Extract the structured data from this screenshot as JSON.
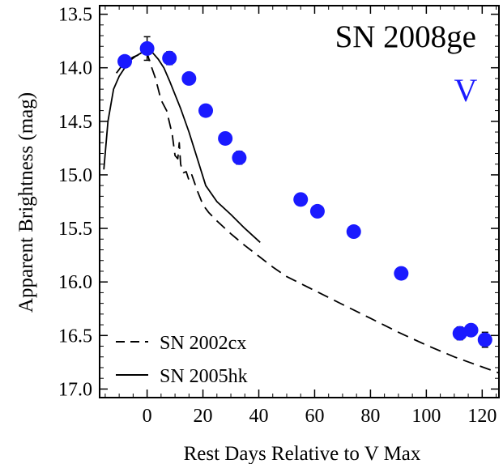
{
  "chart_data": {
    "type": "scatter",
    "title": "SN 2008ge",
    "band_label": "V",
    "xlabel": "Rest Days Relative to V Max",
    "ylabel": "Apparent Brightness (mag)",
    "xlim": [
      -17,
      126
    ],
    "ylim": [
      13.42,
      17.08
    ],
    "y_inverted": true,
    "xticks": [
      0,
      20,
      40,
      60,
      80,
      100,
      120
    ],
    "yticks": [
      13.5,
      14.0,
      14.5,
      15.0,
      15.5,
      16.0,
      16.5,
      17.0
    ],
    "ytick_labels": [
      "13.5",
      "14.0",
      "14.5",
      "15.0",
      "15.5",
      "16.0",
      "16.5",
      "17.0"
    ],
    "legend_position": "bottom-left",
    "points": {
      "name": "SN 2008ge",
      "color": "#1a1aff",
      "x": [
        -8,
        0,
        8,
        15,
        21,
        28,
        33,
        55,
        61,
        74,
        91,
        112,
        116,
        121
      ],
      "y": [
        13.94,
        13.82,
        13.91,
        14.1,
        14.4,
        14.66,
        14.84,
        15.23,
        15.34,
        15.53,
        15.92,
        16.48,
        16.45,
        16.54
      ],
      "err": [
        0.02,
        0.11,
        0.06,
        0.03,
        0.03,
        0.03,
        0.06,
        0.03,
        0.03,
        0.05,
        0.03,
        0.06,
        0.05,
        0.07
      ]
    },
    "series": [
      {
        "name": "SN 2002cx",
        "style": "dashed",
        "x": [
          -11,
          -9,
          -7,
          -5,
          -3,
          -1,
          0,
          1,
          3,
          5,
          7,
          9,
          10,
          11,
          11.5,
          12,
          12.5,
          13,
          14,
          15,
          16,
          18,
          20,
          22,
          25,
          30,
          35,
          40,
          45,
          50,
          60,
          70,
          80,
          90,
          100,
          110,
          126
        ],
        "y": [
          14.05,
          13.98,
          13.93,
          13.9,
          13.88,
          13.86,
          13.86,
          13.95,
          14.1,
          14.3,
          14.4,
          14.62,
          14.82,
          14.85,
          14.7,
          14.9,
          14.95,
          14.98,
          14.97,
          15.05,
          15.0,
          15.15,
          15.28,
          15.35,
          15.43,
          15.55,
          15.66,
          15.76,
          15.86,
          15.95,
          16.08,
          16.21,
          16.34,
          16.47,
          16.59,
          16.7,
          16.85
        ]
      },
      {
        "name": "SN 2005hk",
        "style": "solid",
        "x": [
          -15.5,
          -14,
          -12,
          -10,
          -8,
          -6,
          -4,
          -2,
          0,
          2,
          4,
          6,
          8,
          10,
          12,
          15,
          18,
          21,
          25,
          30,
          35,
          40.5
        ],
        "y": [
          14.95,
          14.5,
          14.2,
          14.08,
          14.0,
          13.93,
          13.89,
          13.86,
          13.84,
          13.86,
          13.92,
          14.0,
          14.12,
          14.25,
          14.38,
          14.6,
          14.85,
          15.1,
          15.25,
          15.37,
          15.5,
          15.63
        ]
      }
    ]
  }
}
